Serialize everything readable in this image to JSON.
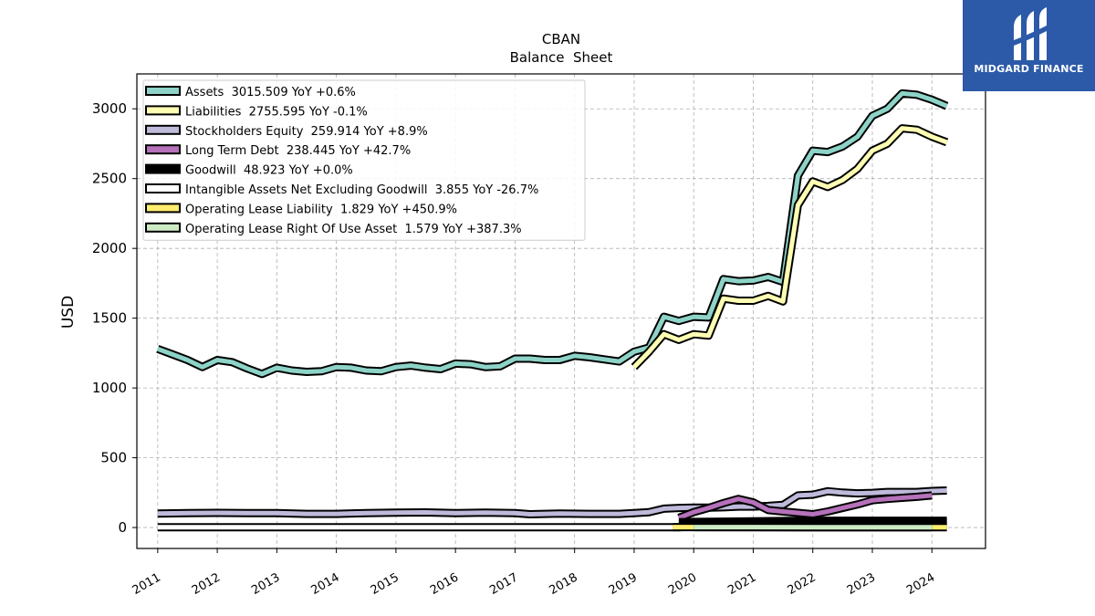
{
  "chart_data": {
    "type": "line",
    "title": "CBAN",
    "subtitle": "Balance  Sheet",
    "ylabel": "USD",
    "xlabel": "",
    "ylim": [
      -150,
      3250
    ],
    "xlim": [
      2010.65,
      2024.9
    ],
    "y_ticks": [
      0,
      500,
      1000,
      1500,
      2000,
      2500,
      3000
    ],
    "x_ticks": [
      2011,
      2012,
      2013,
      2014,
      2015,
      2016,
      2017,
      2018,
      2019,
      2020,
      2021,
      2022,
      2023,
      2024
    ],
    "x_tick_labels": [
      "2011",
      "2012",
      "2013",
      "2014",
      "2015",
      "2016",
      "2017",
      "2018",
      "2019",
      "2020",
      "2021",
      "2022",
      "2023",
      "2024"
    ],
    "grid": true,
    "legend_position": "top-left",
    "series": [
      {
        "name": "Assets",
        "legend": "Assets  3015.509 YoY +0.6%",
        "color": "#8dd3c7",
        "x": [
          2011.0,
          2011.25,
          2011.5,
          2011.75,
          2012.0,
          2012.25,
          2012.5,
          2012.75,
          2013.0,
          2013.25,
          2013.5,
          2013.75,
          2014.0,
          2014.25,
          2014.5,
          2014.75,
          2015.0,
          2015.25,
          2015.5,
          2015.75,
          2016.0,
          2016.25,
          2016.5,
          2016.75,
          2017.0,
          2017.25,
          2017.5,
          2017.75,
          2018.0,
          2018.25,
          2018.5,
          2018.75,
          2019.0,
          2019.25,
          2019.5,
          2019.75,
          2020.0,
          2020.25,
          2020.5,
          2020.75,
          2021.0,
          2021.25,
          2021.5,
          2021.75,
          2022.0,
          2022.25,
          2022.5,
          2022.75,
          2023.0,
          2023.25,
          2023.5,
          2023.75,
          2024.0,
          2024.25
        ],
        "y": [
          1280,
          1240,
          1200,
          1150,
          1200,
          1185,
          1140,
          1100,
          1145,
          1125,
          1115,
          1120,
          1150,
          1145,
          1125,
          1120,
          1150,
          1160,
          1145,
          1135,
          1175,
          1170,
          1150,
          1155,
          1210,
          1210,
          1200,
          1200,
          1230,
          1220,
          1205,
          1190,
          1260,
          1290,
          1510,
          1480,
          1510,
          1505,
          1780,
          1765,
          1770,
          1795,
          1760,
          2520,
          2700,
          2690,
          2730,
          2800,
          2950,
          3000,
          3110,
          3100,
          3065,
          3020
        ]
      },
      {
        "name": "Liabilities",
        "legend": "Liabilities  2755.595 YoY -0.1%",
        "color": "#ffffb3",
        "x": [
          2019.0,
          2019.25,
          2019.5,
          2019.75,
          2020.0,
          2020.25,
          2020.5,
          2020.75,
          2021.0,
          2021.25,
          2021.5,
          2021.75,
          2022.0,
          2022.25,
          2022.5,
          2022.75,
          2023.0,
          2023.25,
          2023.5,
          2023.75,
          2024.0,
          2024.25
        ],
        "y": [
          1150,
          1260,
          1385,
          1345,
          1385,
          1375,
          1640,
          1625,
          1625,
          1660,
          1620,
          2310,
          2480,
          2440,
          2490,
          2570,
          2700,
          2750,
          2860,
          2850,
          2800,
          2760
        ]
      },
      {
        "name": "Stockholders Equity",
        "legend": "Stockholders Equity  259.914 YoY +8.9%",
        "color": "#bebada",
        "x": [
          2011.0,
          2011.5,
          2012.0,
          2012.5,
          2013.0,
          2013.5,
          2014.0,
          2014.5,
          2015.0,
          2015.5,
          2016.0,
          2016.5,
          2017.0,
          2017.25,
          2017.75,
          2018.25,
          2018.75,
          2019.0,
          2019.25,
          2019.5,
          2019.75,
          2020.0,
          2020.25,
          2020.5,
          2020.75,
          2021.0,
          2021.25,
          2021.5,
          2021.75,
          2022.0,
          2022.25,
          2022.5,
          2022.75,
          2023.0,
          2023.25,
          2023.5,
          2023.75,
          2024.0,
          2024.25
        ],
        "y": [
          100,
          103,
          105,
          104,
          103,
          98,
          98,
          103,
          106,
          108,
          103,
          107,
          103,
          95,
          100,
          98,
          98,
          103,
          110,
          135,
          140,
          142,
          142,
          145,
          150,
          150,
          155,
          162,
          230,
          235,
          260,
          250,
          245,
          248,
          255,
          255,
          255,
          262,
          265
        ]
      },
      {
        "name": "Long Term Debt",
        "legend": "Long Term Debt  238.445 YoY +42.7%",
        "color": "#b571b9",
        "x": [
          2019.75,
          2020.0,
          2020.25,
          2020.5,
          2020.75,
          2021.0,
          2021.25,
          2021.5,
          2021.75,
          2022.0,
          2022.25,
          2022.5,
          2022.75,
          2023.0,
          2023.25,
          2023.5,
          2023.75,
          2024.0
        ],
        "y": [
          70,
          110,
          140,
          175,
          205,
          180,
          125,
          115,
          105,
          95,
          115,
          140,
          165,
          195,
          205,
          213,
          220,
          230
        ]
      },
      {
        "name": "Goodwill",
        "legend": "Goodwill  48.923 YoY +0.0%",
        "color": "#000000",
        "x": [
          2019.75,
          2020.0,
          2020.5,
          2021.0,
          2021.5,
          2022.0,
          2022.5,
          2023.0,
          2023.5,
          2024.0,
          2024.25
        ],
        "y": [
          38,
          40,
          42,
          45,
          47,
          49,
          49,
          49,
          49,
          49,
          49
        ]
      },
      {
        "name": "Intangible Assets Net Excluding Goodwill",
        "legend": "Intangible Assets Net Excluding Goodwill  3.855 YoY -26.7%",
        "color": "#ffffff",
        "x": [
          2011.0,
          2012.0,
          2013.0,
          2014.0,
          2015.0,
          2016.0,
          2017.0,
          2018.0,
          2019.0,
          2019.5,
          2019.75,
          2020.0,
          2021.0,
          2022.0,
          2023.0,
          2024.0,
          2024.25
        ],
        "y": [
          2,
          2,
          2,
          2,
          2,
          2,
          2,
          2,
          2,
          2,
          2,
          10,
          9,
          8,
          6,
          5,
          4
        ]
      },
      {
        "name": "Operating Lease Liability",
        "legend": "Operating Lease Liability  1.829 YoY +450.9%",
        "color": "#ffed6f",
        "x": [
          2019.65,
          2019.75,
          2019.85,
          2020.0,
          2024.0,
          2024.25
        ],
        "y": [
          3,
          3,
          3,
          3,
          2,
          2
        ]
      },
      {
        "name": "Operating Lease Right Of Use Asset",
        "legend": "Operating Lease Right Of Use Asset  1.579 YoY +387.3%",
        "color": "#ccebc5",
        "x": [
          2020.0,
          2021.0,
          2022.0,
          2023.0,
          2024.0
        ],
        "y": [
          3,
          3,
          2,
          2,
          2
        ]
      }
    ]
  },
  "logo": {
    "name": "MIDGARD FINANCE",
    "background": "#2c5aa8"
  }
}
